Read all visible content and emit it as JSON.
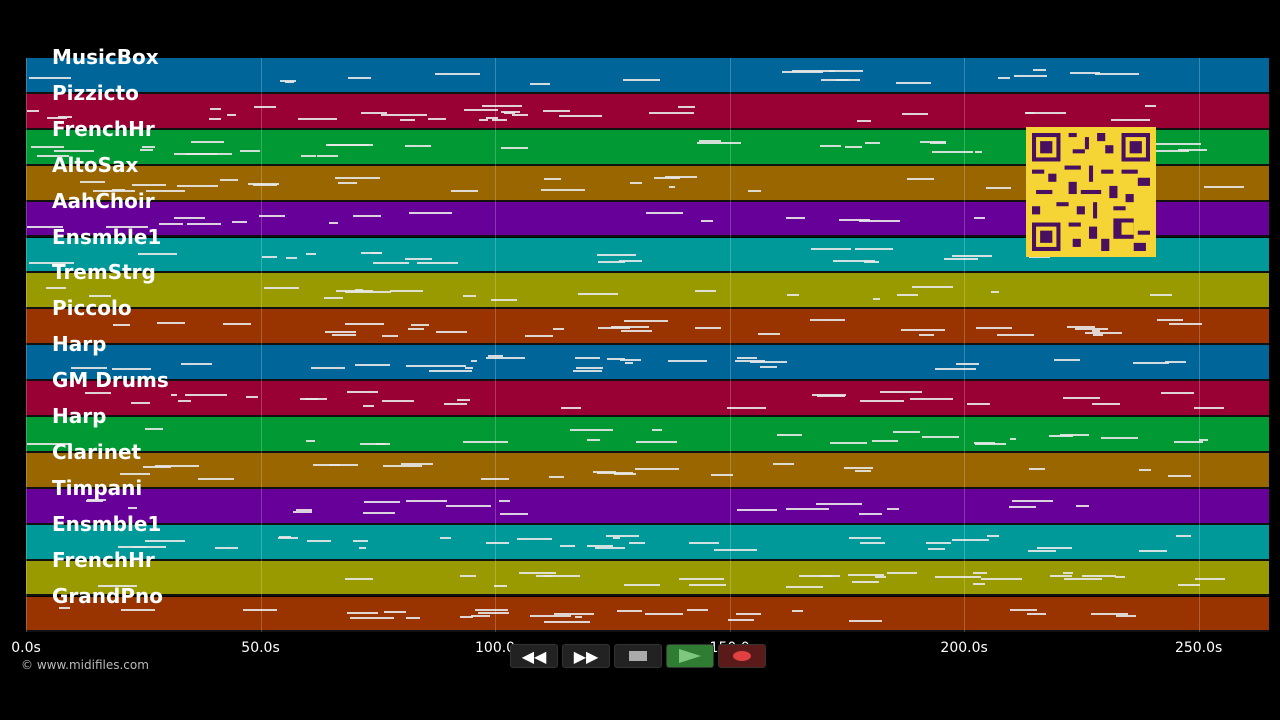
{
  "tracks": [
    {
      "name": "MusicBox",
      "color": "#006699"
    },
    {
      "name": "Pizzicto",
      "color": "#990033"
    },
    {
      "name": "FrenchHr",
      "color": "#009933"
    },
    {
      "name": "AltoSax",
      "color": "#996600"
    },
    {
      "name": "AahChoir",
      "color": "#660099"
    },
    {
      "name": "Ensmble1",
      "color": "#009999"
    },
    {
      "name": "TremStrg",
      "color": "#999900"
    },
    {
      "name": "Piccolo",
      "color": "#993300"
    },
    {
      "name": "Harp",
      "color": "#006699"
    },
    {
      "name": "GM Drums",
      "color": "#990033"
    },
    {
      "name": "Harp",
      "color": "#009933"
    },
    {
      "name": "Clarinet",
      "color": "#996600"
    },
    {
      "name": "Timpani",
      "color": "#660099"
    },
    {
      "name": "Ensmble1",
      "color": "#009999"
    },
    {
      "name": "FrenchHr",
      "color": "#999900"
    },
    {
      "name": "GrandPno",
      "color": "#993300"
    }
  ],
  "timeline": {
    "ticks": [
      "0.0s",
      "50.0s",
      "100.0",
      "150.0",
      "200.0s",
      "250.0s"
    ],
    "tick_values": [
      0,
      50,
      100,
      150,
      200,
      250
    ],
    "max_seconds": 265
  },
  "copyright": "© www.midifiles.com",
  "transport": {
    "rewind_icon": "rewind-icon",
    "forward_icon": "fast-forward-icon",
    "stop_icon": "stop-icon",
    "play_icon": "play-icon",
    "record_icon": "record-icon"
  },
  "overlay": {
    "qr_icon": "qr-code-icon",
    "qr_color": "#f5d436"
  }
}
